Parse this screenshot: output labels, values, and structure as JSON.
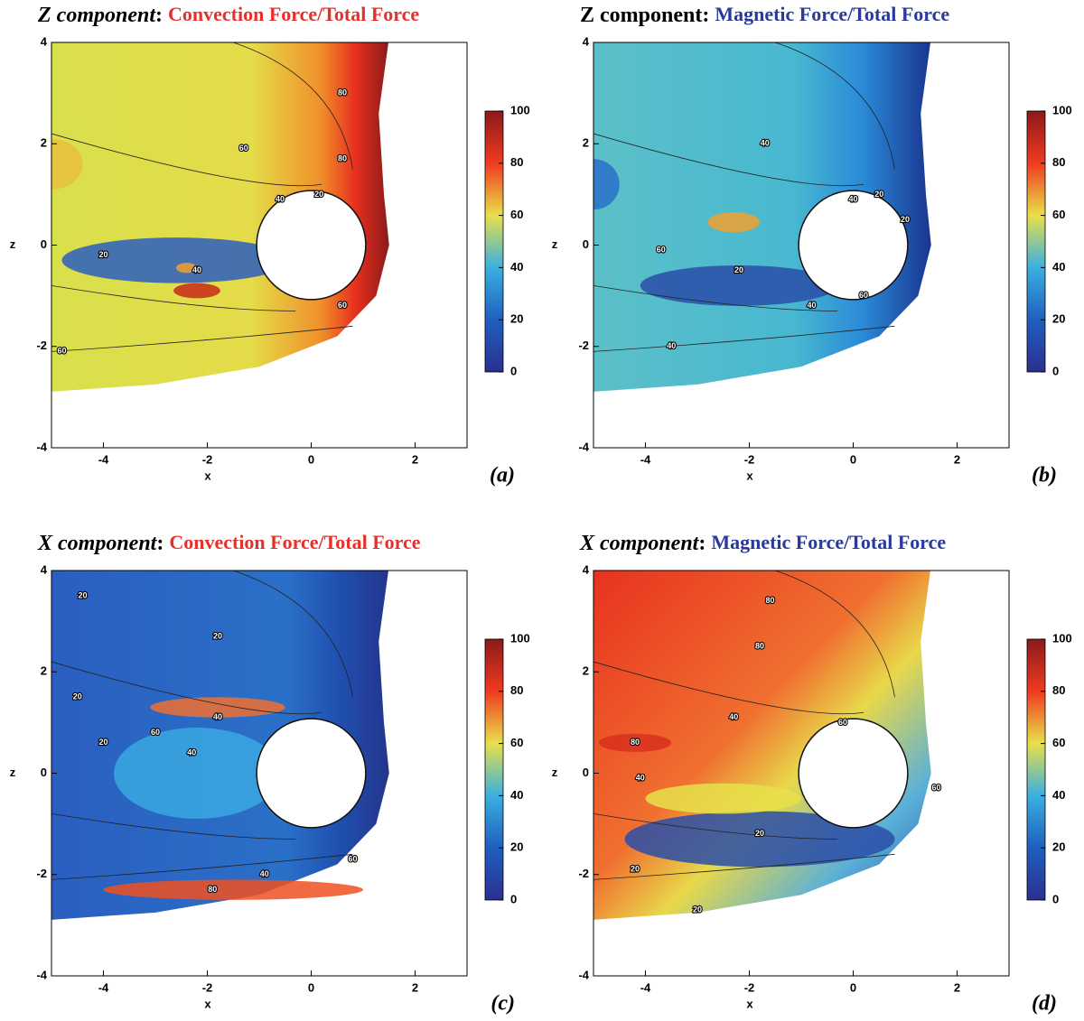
{
  "chart_data": [
    {
      "type": "contour",
      "title_component": "Z component",
      "title_separator": ":",
      "title_quantity": "Convection Force/Total Force",
      "title_quantity_color": "#e8302a",
      "component_italic": true,
      "panel_label": "(a)",
      "xlabel": "x",
      "ylabel": "z",
      "xlim": [
        -5,
        3
      ],
      "ylim": [
        -4,
        4
      ],
      "xticks": [
        -4,
        -2,
        0,
        2
      ],
      "yticks": [
        -4,
        -2,
        0,
        2,
        4
      ],
      "clim": [
        0,
        100
      ],
      "cticks": [
        0,
        20,
        40,
        60,
        80,
        100
      ],
      "contour_levels": [
        20,
        40,
        60,
        80
      ]
    },
    {
      "type": "contour",
      "title_component": "Z component",
      "title_separator": ":",
      "title_quantity": "Magnetic Force/Total Force",
      "title_quantity_color": "#2a3a9a",
      "component_italic": false,
      "panel_label": "(b)",
      "xlabel": "x",
      "ylabel": "z",
      "xlim": [
        -5,
        3
      ],
      "ylim": [
        -4,
        4
      ],
      "xticks": [
        -4,
        -2,
        0,
        2
      ],
      "yticks": [
        -4,
        -2,
        0,
        2,
        4
      ],
      "clim": [
        0,
        100
      ],
      "cticks": [
        0,
        20,
        40,
        60,
        80,
        100
      ],
      "contour_levels": [
        20,
        40,
        60
      ]
    },
    {
      "type": "contour",
      "title_component": "X component",
      "title_separator": ":",
      "title_quantity": "Convection Force/Total Force",
      "title_quantity_color": "#e8302a",
      "component_italic": true,
      "panel_label": "(c)",
      "xlabel": "x",
      "ylabel": "z",
      "xlim": [
        -5,
        3
      ],
      "ylim": [
        -4,
        4
      ],
      "xticks": [
        -4,
        -2,
        0,
        2
      ],
      "yticks": [
        -4,
        -2,
        0,
        2,
        4
      ],
      "clim": [
        0,
        100
      ],
      "cticks": [
        0,
        20,
        40,
        60,
        80,
        100
      ],
      "contour_levels": [
        20,
        40,
        60,
        80
      ]
    },
    {
      "type": "contour",
      "title_component": "X component",
      "title_separator": ":",
      "title_quantity": "Magnetic Force/Total Force",
      "title_quantity_color": "#2a3a9a",
      "component_italic": true,
      "panel_label": "(d)",
      "xlabel": "x",
      "ylabel": "z",
      "xlim": [
        -5,
        3
      ],
      "ylim": [
        -4,
        4
      ],
      "xticks": [
        -4,
        -2,
        0,
        2
      ],
      "yticks": [
        -4,
        -2,
        0,
        2,
        4
      ],
      "clim": [
        0,
        100
      ],
      "cticks": [
        0,
        20,
        40,
        60,
        80,
        100
      ],
      "contour_levels": [
        20,
        40,
        60,
        80
      ]
    }
  ]
}
